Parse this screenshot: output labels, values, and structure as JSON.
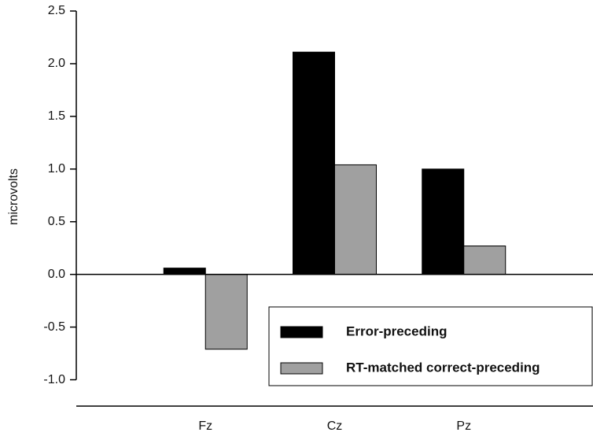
{
  "chart_data": {
    "type": "bar",
    "y_label": "microvolts",
    "categories": [
      "Fz",
      "Cz",
      "Pz"
    ],
    "series": [
      {
        "name": "Error-preceding",
        "color": "#000000",
        "values": [
          0.06,
          2.11,
          1.0
        ]
      },
      {
        "name": "RT-matched correct-preceding",
        "color": "#a0a0a0",
        "values": [
          -0.71,
          1.04,
          0.27
        ]
      }
    ],
    "ylim": [
      -1.25,
      2.5
    ],
    "yticks": [
      {
        "value": -1,
        "label": "-1.0"
      },
      {
        "value": -0.5,
        "label": "-0.5"
      },
      {
        "value": 0,
        "label": "0.0"
      },
      {
        "value": 0.5,
        "label": "0.5"
      },
      {
        "value": 1,
        "label": "1.0"
      },
      {
        "value": 1.5,
        "label": "1.5"
      },
      {
        "value": 2,
        "label": "2.0"
      },
      {
        "value": 2.5,
        "label": "2.5"
      }
    ],
    "legend": "lower right"
  }
}
